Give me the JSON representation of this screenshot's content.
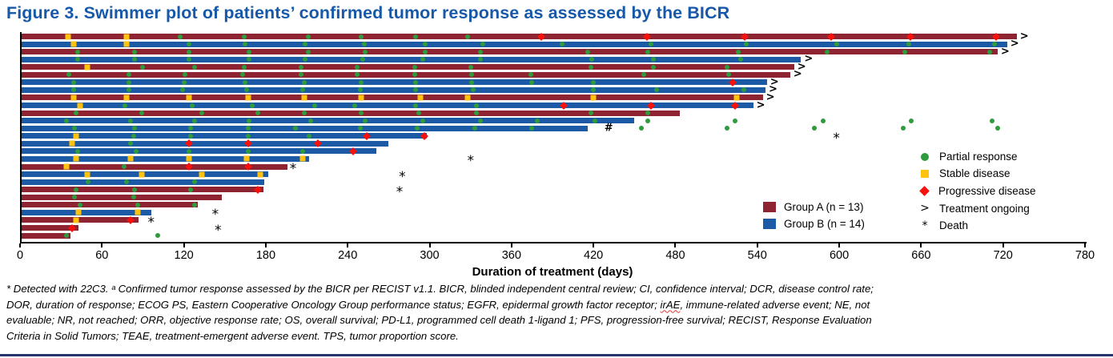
{
  "title": "Figure 3. Swimmer plot of patients’ confirmed tumor response as assessed by the BICR",
  "colors": {
    "group_a": "#8E2332",
    "group_b": "#1C5AA5",
    "partial_response": "#2E9B3C",
    "stable_disease": "#FFC20E",
    "progressive_disease": "#F5120D",
    "title": "#1758A8",
    "rule": "#27356B"
  },
  "chart_data": {
    "type": "swimmer",
    "xlabel": "Duration of treatment (days)",
    "xlim": [
      0,
      780
    ],
    "x_ticks": [
      0,
      60,
      120,
      180,
      240,
      300,
      360,
      420,
      480,
      540,
      600,
      660,
      720,
      780
    ],
    "grid": false,
    "marker_legend": [
      {
        "type": "pr",
        "label": "Partial response"
      },
      {
        "type": "sd",
        "label": "Stable disease"
      },
      {
        "type": "pd",
        "label": "Progressive disease"
      },
      {
        "type": "ongoing",
        "symbol": ">",
        "label": "Treatment ongoing"
      },
      {
        "type": "death",
        "symbol": "*",
        "label": "Death"
      }
    ],
    "group_legend": [
      {
        "group": "A",
        "label": "Group A (n = 13)"
      },
      {
        "group": "B",
        "label": "Group B (n = 14)"
      }
    ],
    "annotation_symbols": {
      "ongoing": ">",
      "death": "*",
      "off_treatment": "#"
    },
    "patients": [
      {
        "group": "A",
        "duration": 730,
        "ongoing": true,
        "markers": [
          [
            "sd",
            35
          ],
          [
            "sd",
            78
          ],
          [
            "pr",
            117
          ],
          [
            "pr",
            164
          ],
          [
            "pr",
            211
          ],
          [
            "pr",
            250
          ],
          [
            "pr",
            290
          ],
          [
            "pr",
            328
          ],
          [
            "pd",
            382
          ],
          [
            "pd",
            459
          ],
          [
            "pd",
            531
          ],
          [
            "pd",
            594
          ],
          [
            "pd",
            652
          ],
          [
            "pd",
            715
          ]
        ]
      },
      {
        "group": "B",
        "duration": 723,
        "ongoing": true,
        "markers": [
          [
            "sd",
            39
          ],
          [
            "sd",
            78
          ],
          [
            "pr",
            124
          ],
          [
            "pr",
            165
          ],
          [
            "pr",
            209
          ],
          [
            "pr",
            252
          ],
          [
            "pr",
            297
          ],
          [
            "pr",
            339
          ],
          [
            "pr",
            397
          ],
          [
            "pr",
            462
          ],
          [
            "pr",
            532
          ],
          [
            "pr",
            598
          ],
          [
            "pr",
            651
          ],
          [
            "pr",
            714
          ]
        ]
      },
      {
        "group": "A",
        "duration": 716,
        "ongoing": true,
        "markers": [
          [
            "pr",
            42
          ],
          [
            "pr",
            84
          ],
          [
            "pr",
            124
          ],
          [
            "pr",
            168
          ],
          [
            "pr",
            211
          ],
          [
            "pr",
            253
          ],
          [
            "pr",
            297
          ],
          [
            "pr",
            337
          ],
          [
            "pr",
            416
          ],
          [
            "pr",
            460
          ],
          [
            "pr",
            526
          ],
          [
            "pr",
            591
          ],
          [
            "pr",
            648
          ],
          [
            "pr",
            710
          ]
        ]
      },
      {
        "group": "B",
        "duration": 572,
        "ongoing": true,
        "markers": [
          [
            "pr",
            42
          ],
          [
            "pr",
            84
          ],
          [
            "pr",
            124
          ],
          [
            "pr",
            168
          ],
          [
            "pr",
            209
          ],
          [
            "pr",
            251
          ],
          [
            "pr",
            295
          ],
          [
            "pr",
            337
          ],
          [
            "pr",
            419
          ],
          [
            "pr",
            464
          ],
          [
            "pr",
            528
          ]
        ]
      },
      {
        "group": "A",
        "duration": 567,
        "ongoing": true,
        "markers": [
          [
            "sd",
            49
          ],
          [
            "pr",
            90
          ],
          [
            "pr",
            128
          ],
          [
            "pr",
            164
          ],
          [
            "pr",
            206
          ],
          [
            "pr",
            247
          ],
          [
            "pr",
            289
          ],
          [
            "pr",
            330
          ],
          [
            "pr",
            418
          ],
          [
            "pr",
            464
          ],
          [
            "pr",
            518
          ]
        ]
      },
      {
        "group": "A",
        "duration": 564,
        "ongoing": true,
        "markers": [
          [
            "pr",
            36
          ],
          [
            "pr",
            80
          ],
          [
            "pr",
            121
          ],
          [
            "pr",
            163
          ],
          [
            "pr",
            206
          ],
          [
            "pr",
            247
          ],
          [
            "pr",
            289
          ],
          [
            "pr",
            331
          ],
          [
            "pr",
            374
          ],
          [
            "pr",
            457
          ],
          [
            "pr",
            519
          ]
        ]
      },
      {
        "group": "B",
        "duration": 547,
        "ongoing": true,
        "markers": [
          [
            "pr",
            39
          ],
          [
            "pr",
            80
          ],
          [
            "pr",
            120
          ],
          [
            "pr",
            165
          ],
          [
            "pr",
            208
          ],
          [
            "pr",
            250
          ],
          [
            "pr",
            290
          ],
          [
            "pr",
            331
          ],
          [
            "pr",
            375
          ],
          [
            "pr",
            420
          ],
          [
            "pd",
            522
          ]
        ]
      },
      {
        "group": "B",
        "duration": 546,
        "ongoing": true,
        "markers": [
          [
            "pr",
            39
          ],
          [
            "pr",
            80
          ],
          [
            "pr",
            119
          ],
          [
            "pr",
            166
          ],
          [
            "pr",
            207
          ],
          [
            "pr",
            249
          ],
          [
            "pr",
            290
          ],
          [
            "pr",
            332
          ],
          [
            "pr",
            420
          ],
          [
            "pr",
            466
          ],
          [
            "pr",
            530
          ]
        ]
      },
      {
        "group": "A",
        "duration": 544,
        "ongoing": true,
        "markers": [
          [
            "sd",
            39
          ],
          [
            "sd",
            78
          ],
          [
            "sd",
            124
          ],
          [
            "sd",
            167
          ],
          [
            "sd",
            208
          ],
          [
            "sd",
            250
          ],
          [
            "sd",
            293
          ],
          [
            "sd",
            328
          ],
          [
            "sd",
            420
          ],
          [
            "sd",
            525
          ]
        ]
      },
      {
        "group": "B",
        "duration": 537,
        "ongoing": true,
        "markers": [
          [
            "sd",
            44
          ],
          [
            "pr",
            77
          ],
          [
            "pr",
            126
          ],
          [
            "pr",
            170
          ],
          [
            "pr",
            216
          ],
          [
            "pr",
            245
          ],
          [
            "pr",
            290
          ],
          [
            "pr",
            334
          ],
          [
            "pd",
            398
          ],
          [
            "pd",
            462
          ],
          [
            "pd",
            524
          ]
        ]
      },
      {
        "group": "A",
        "duration": 483,
        "markers": [
          [
            "pr",
            41
          ],
          [
            "pr",
            89
          ],
          [
            "pr",
            133
          ],
          [
            "pr",
            174
          ],
          [
            "pr",
            208
          ],
          [
            "pr",
            250
          ],
          [
            "pr",
            292
          ],
          [
            "pr",
            334
          ],
          [
            "pr",
            418
          ],
          [
            "pr",
            460
          ]
        ]
      },
      {
        "group": "B",
        "duration": 450,
        "markers": [
          [
            "pr",
            34
          ],
          [
            "pr",
            81
          ],
          [
            "pr",
            128
          ],
          [
            "pr",
            168
          ],
          [
            "pr",
            213
          ],
          [
            "pr",
            253
          ],
          [
            "pr",
            295
          ],
          [
            "pr",
            337
          ],
          [
            "pr",
            379
          ],
          [
            "pr",
            421
          ],
          [
            "pr",
            460
          ],
          [
            "pr",
            524
          ],
          [
            "pr",
            588
          ],
          [
            "pr",
            653
          ],
          [
            "pr",
            712
          ]
        ]
      },
      {
        "group": "B",
        "duration": 416,
        "off_treatment_mark": 428,
        "markers": [
          [
            "pr",
            40
          ],
          [
            "pr",
            84
          ],
          [
            "pr",
            125
          ],
          [
            "pr",
            167
          ],
          [
            "pr",
            202
          ],
          [
            "pr",
            249
          ],
          [
            "pr",
            291
          ],
          [
            "pr",
            333
          ],
          [
            "pr",
            375
          ],
          [
            "pr",
            455
          ],
          [
            "pr",
            518
          ],
          [
            "pr",
            582
          ],
          [
            "pr",
            647
          ],
          [
            "pr",
            716
          ]
        ]
      },
      {
        "group": "B",
        "duration": 298,
        "death": 598,
        "markers": [
          [
            "sd",
            41
          ],
          [
            "pr",
            83
          ],
          [
            "pr",
            125
          ],
          [
            "pr",
            167
          ],
          [
            "pr",
            212
          ],
          [
            "pd",
            254
          ],
          [
            "pd",
            296
          ]
        ]
      },
      {
        "group": "B",
        "duration": 270,
        "markers": [
          [
            "sd",
            38
          ],
          [
            "pr",
            81
          ],
          [
            "pd",
            124
          ],
          [
            "pd",
            167
          ],
          [
            "pd",
            218
          ]
        ]
      },
      {
        "group": "B",
        "duration": 261,
        "markers": [
          [
            "pr",
            42
          ],
          [
            "pr",
            85
          ],
          [
            "pr",
            124
          ],
          [
            "pr",
            167
          ],
          [
            "pr",
            207
          ],
          [
            "pd",
            244
          ]
        ]
      },
      {
        "group": "B",
        "duration": 212,
        "death": 330,
        "markers": [
          [
            "sd",
            41
          ],
          [
            "sd",
            81
          ],
          [
            "sd",
            124
          ],
          [
            "sd",
            166
          ],
          [
            "sd",
            207
          ]
        ]
      },
      {
        "group": "A",
        "duration": 196,
        "death": 200,
        "markers": [
          [
            "sd",
            34
          ],
          [
            "pr",
            76
          ],
          [
            "pd",
            124
          ],
          [
            "pd",
            167
          ]
        ]
      },
      {
        "group": "B",
        "duration": 182,
        "death": 280,
        "markers": [
          [
            "sd",
            49
          ],
          [
            "sd",
            89
          ],
          [
            "sd",
            133
          ],
          [
            "sd",
            176
          ]
        ]
      },
      {
        "group": "B",
        "duration": 179,
        "markers": [
          [
            "pr",
            50
          ],
          [
            "pr",
            78
          ],
          [
            "pr",
            128
          ]
        ]
      },
      {
        "group": "A",
        "duration": 178,
        "death": 278,
        "markers": [
          [
            "pr",
            41
          ],
          [
            "pr",
            84
          ],
          [
            "pr",
            125
          ],
          [
            "pd",
            174
          ]
        ]
      },
      {
        "group": "A",
        "duration": 148,
        "markers": [
          [
            "pr",
            40
          ],
          [
            "pr",
            83
          ]
        ]
      },
      {
        "group": "A",
        "duration": 130,
        "markers": [
          [
            "pr",
            44
          ],
          [
            "pr",
            86
          ],
          [
            "pr",
            128
          ]
        ]
      },
      {
        "group": "B",
        "duration": 96,
        "death": 143,
        "markers": [
          [
            "sd",
            43
          ],
          [
            "sd",
            86
          ]
        ]
      },
      {
        "group": "A",
        "duration": 87,
        "death": 96,
        "markers": [
          [
            "sd",
            41
          ],
          [
            "pd",
            81
          ]
        ]
      },
      {
        "group": "A",
        "duration": 43,
        "death": 145,
        "markers": [
          [
            "pd",
            38
          ]
        ]
      },
      {
        "group": "A",
        "duration": 37,
        "markers": [
          [
            "pr",
            34
          ],
          [
            "pr",
            101
          ]
        ]
      }
    ]
  },
  "footnote_lines": [
    "* Detected with 22C3. ᵃ Confirmed tumor response assessed by the BICR per RECIST v1.1. BICR, blinded independent central review; CI, confidence interval; DCR, disease control rate;",
    "DOR, duration of response; ECOG PS, Eastern Cooperative Oncology Group performance status; EGFR, epidermal growth factor receptor; irAE, immune-related adverse event; NE, not",
    "evaluable; NR, not reached; ORR, objective response rate; OS, overall survival; PD-L1, programmed cell death 1-ligand 1; PFS, progression-free survival; RECIST, Response Evaluation",
    "Criteria in Solid Tumors; TEAE, treatment-emergent adverse event. TPS, tumor proportion score."
  ]
}
